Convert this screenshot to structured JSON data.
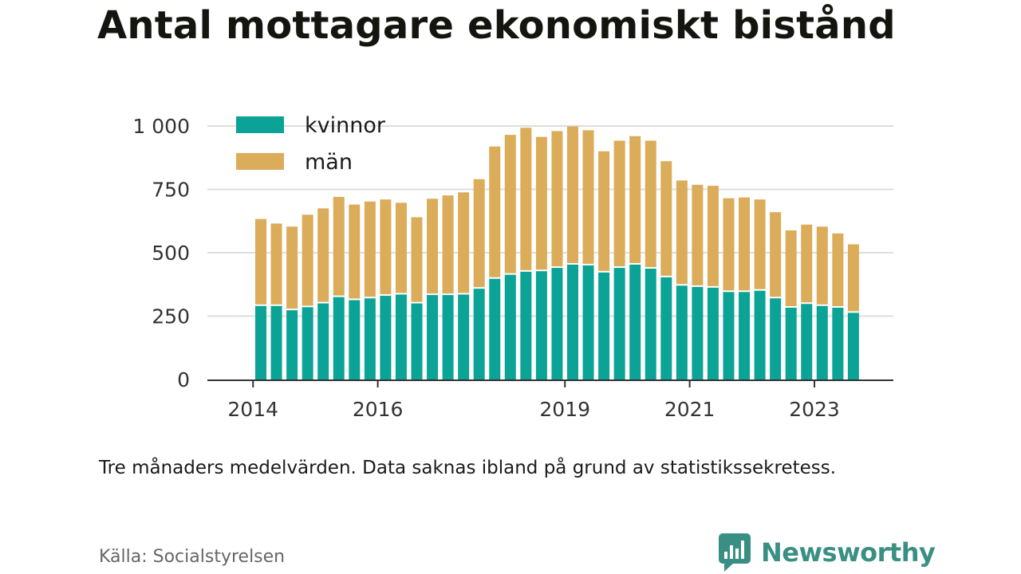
{
  "title": "Antal mottagare ekonomiskt bistånd",
  "note": "Tre månaders medelvärden. Data saknas ibland på grund av statistikssekretess.",
  "source": "Källa: Socialstyrelsen",
  "brand": {
    "name": "Newsworthy",
    "icon": "bar-chart-speech-bubble-icon",
    "color": "#3a8f84"
  },
  "colors": {
    "kvinnor": "#0aa396",
    "man": "#dbac5a",
    "grid": "#dddddd",
    "axis": "#333333"
  },
  "chart_data": {
    "type": "bar",
    "stacked": true,
    "ylim": [
      0,
      1000
    ],
    "yticks": [
      {
        "value": 0,
        "label": "0"
      },
      {
        "value": 250,
        "label": "250"
      },
      {
        "value": 500,
        "label": "500"
      },
      {
        "value": 750,
        "label": "750"
      },
      {
        "value": 1000,
        "label": "1 000"
      }
    ],
    "xticks": [
      {
        "index": -0.5,
        "label": "2014"
      },
      {
        "index": 7.5,
        "label": "2016"
      },
      {
        "index": 19.5,
        "label": "2019"
      },
      {
        "index": 27.5,
        "label": "2021"
      },
      {
        "index": 35.5,
        "label": "2023"
      }
    ],
    "grid": true,
    "legend": "top-left",
    "series": [
      {
        "name": "kvinnor",
        "color": "#0aa396",
        "values": [
          290,
          290,
          273,
          285,
          300,
          325,
          313,
          320,
          330,
          335,
          300,
          333,
          333,
          335,
          358,
          397,
          413,
          425,
          427,
          440,
          453,
          450,
          422,
          440,
          453,
          437,
          403,
          370,
          365,
          362,
          345,
          345,
          350,
          320,
          283,
          298,
          290,
          283,
          263
        ]
      },
      {
        "name": "män",
        "color": "#dbac5a",
        "values": [
          343,
          325,
          330,
          365,
          375,
          395,
          377,
          382,
          380,
          362,
          340,
          380,
          393,
          403,
          432,
          522,
          552,
          568,
          530,
          540,
          545,
          533,
          478,
          502,
          507,
          505,
          458,
          415,
          403,
          402,
          370,
          373,
          360,
          340,
          305,
          313,
          313,
          293,
          270
        ]
      }
    ]
  }
}
